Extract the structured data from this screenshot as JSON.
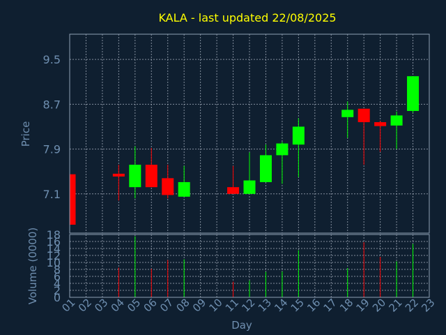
{
  "colors": {
    "background": "#0f1f30",
    "title": "#ffff00",
    "axis_text": "#6f8fb0",
    "frame": "#8fa0b5",
    "grid": "#aab4c2",
    "up": "#00ff00",
    "down": "#ff0000"
  },
  "chart_data": [
    {
      "type": "candlestick",
      "title": "KALA - last updated 22/08/2025",
      "ylabel": "Price",
      "xlabel": "",
      "ylim": [
        6.4,
        9.95
      ],
      "yticks": [
        "7.1",
        "7.9",
        "8.7",
        "9.5"
      ],
      "grid": true,
      "candles": [
        {
          "day": 1,
          "open": 7.45,
          "high": 7.45,
          "low": 6.55,
          "close": 6.55
        },
        {
          "day": 4,
          "open": 7.46,
          "high": 7.62,
          "low": 6.98,
          "close": 7.41
        },
        {
          "day": 5,
          "open": 7.22,
          "high": 7.95,
          "low": 7.02,
          "close": 7.62
        },
        {
          "day": 6,
          "open": 7.62,
          "high": 7.92,
          "low": 7.22,
          "close": 7.22
        },
        {
          "day": 7,
          "open": 7.38,
          "high": 7.62,
          "low": 7.02,
          "close": 7.08
        },
        {
          "day": 8,
          "open": 7.05,
          "high": 7.6,
          "low": 7.05,
          "close": 7.31
        },
        {
          "day": 11,
          "open": 7.22,
          "high": 7.6,
          "low": 7.1,
          "close": 7.1
        },
        {
          "day": 12,
          "open": 7.1,
          "high": 7.84,
          "low": 7.1,
          "close": 7.34
        },
        {
          "day": 13,
          "open": 7.31,
          "high": 7.98,
          "low": 7.31,
          "close": 7.79
        },
        {
          "day": 14,
          "open": 7.79,
          "high": 8.03,
          "low": 7.28,
          "close": 8.0
        },
        {
          "day": 15,
          "open": 7.98,
          "high": 8.45,
          "low": 7.4,
          "close": 8.3
        },
        {
          "day": 18,
          "open": 8.47,
          "high": 8.75,
          "low": 8.1,
          "close": 8.6
        },
        {
          "day": 19,
          "open": 8.62,
          "high": 8.62,
          "low": 7.62,
          "close": 8.38
        },
        {
          "day": 20,
          "open": 8.38,
          "high": 8.4,
          "low": 7.85,
          "close": 8.31
        },
        {
          "day": 21,
          "open": 8.32,
          "high": 8.57,
          "low": 7.9,
          "close": 8.5
        },
        {
          "day": 22,
          "open": 8.58,
          "high": 9.2,
          "low": 8.55,
          "close": 9.2
        }
      ]
    },
    {
      "type": "bar",
      "ylabel": "Volume (0000)",
      "xlabel": "Day",
      "ylim": [
        0,
        18
      ],
      "yticks": [
        "0",
        "2",
        "4",
        "6",
        "8",
        "10",
        "12",
        "14",
        "16",
        "18"
      ],
      "xticks": [
        "01",
        "02",
        "03",
        "04",
        "05",
        "06",
        "07",
        "08",
        "09",
        "10",
        "11",
        "12",
        "13",
        "14",
        "15",
        "16",
        "17",
        "18",
        "19",
        "20",
        "21",
        "22",
        "23"
      ],
      "grid": true,
      "bars": [
        {
          "day": 4,
          "value": 8.5,
          "direction": "down"
        },
        {
          "day": 5,
          "value": 17.5,
          "direction": "up"
        },
        {
          "day": 6,
          "value": 8.2,
          "direction": "down"
        },
        {
          "day": 7,
          "value": 10.7,
          "direction": "down"
        },
        {
          "day": 8,
          "value": 10.9,
          "direction": "up"
        },
        {
          "day": 11,
          "value": 4.5,
          "direction": "down"
        },
        {
          "day": 12,
          "value": 4.8,
          "direction": "up"
        },
        {
          "day": 13,
          "value": 7.3,
          "direction": "up"
        },
        {
          "day": 14,
          "value": 7.4,
          "direction": "up"
        },
        {
          "day": 15,
          "value": 13.5,
          "direction": "up"
        },
        {
          "day": 18,
          "value": 8.4,
          "direction": "up"
        },
        {
          "day": 19,
          "value": 15.8,
          "direction": "down"
        },
        {
          "day": 20,
          "value": 11.6,
          "direction": "down"
        },
        {
          "day": 21,
          "value": 10.3,
          "direction": "up"
        },
        {
          "day": 22,
          "value": 15.3,
          "direction": "up"
        }
      ]
    }
  ]
}
